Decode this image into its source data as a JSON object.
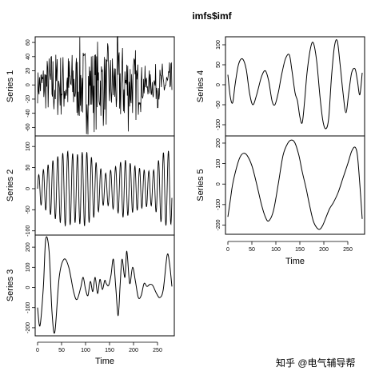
{
  "chart_data": {
    "type": "line",
    "title": "imfs$imf",
    "xlabel": "Time",
    "xticks": [
      0,
      50,
      100,
      150,
      200,
      250
    ],
    "xlim": [
      -5,
      285
    ],
    "panels": [
      {
        "name": "Series 1",
        "column": 1,
        "row": 1,
        "ylim": [
          -72,
          68
        ],
        "yticks": [
          -60,
          -40,
          -20,
          0,
          20,
          40,
          60
        ],
        "kind": "noise",
        "amplitude": 45,
        "envelope_x": [
          0,
          30,
          60,
          100,
          150,
          180,
          200,
          230,
          250,
          280
        ],
        "envelope_y": [
          20,
          50,
          45,
          55,
          45,
          60,
          45,
          15,
          25,
          25
        ]
      },
      {
        "name": "Series 2",
        "column": 1,
        "row": 2,
        "ylim": [
          -110,
          125
        ],
        "yticks": [
          -100,
          -50,
          0,
          50,
          100
        ],
        "kind": "osc",
        "period": 10,
        "envelope_x": [
          0,
          20,
          40,
          60,
          80,
          100,
          120,
          140,
          160,
          180,
          200,
          220,
          240,
          260,
          275,
          280
        ],
        "envelope_y": [
          30,
          55,
          75,
          90,
          80,
          90,
          65,
          35,
          50,
          70,
          55,
          45,
          40,
          85,
          90,
          80
        ]
      },
      {
        "name": "Series 3",
        "column": 1,
        "row": 3,
        "ylim": [
          -240,
          260
        ],
        "yticks": [
          -200,
          -100,
          0,
          100,
          200
        ],
        "kind": "points",
        "x": [
          0,
          5,
          12,
          17,
          24,
          30,
          36,
          45,
          55,
          65,
          75,
          82,
          90,
          95,
          100,
          105,
          110,
          115,
          120,
          125,
          130,
          135,
          140,
          143,
          148,
          153,
          158,
          163,
          168,
          172,
          176,
          182,
          186,
          192,
          198,
          204,
          210,
          216,
          222,
          228,
          234,
          240,
          248,
          255,
          262,
          270,
          275,
          280
        ],
        "y": [
          -100,
          -190,
          0,
          240,
          180,
          -120,
          -220,
          50,
          140,
          100,
          -20,
          -60,
          0,
          50,
          -10,
          -40,
          30,
          -20,
          50,
          -30,
          40,
          -10,
          35,
          20,
          10,
          60,
          140,
          0,
          -140,
          10,
          140,
          50,
          180,
          20,
          100,
          30,
          -50,
          -40,
          20,
          5,
          15,
          10,
          -30,
          -50,
          -10,
          160,
          120,
          5
        ]
      },
      {
        "name": "Series 4",
        "column": 2,
        "row": 1,
        "ylim": [
          -128,
          120
        ],
        "yticks": [
          -100,
          -50,
          0,
          50,
          100
        ],
        "kind": "points",
        "x": [
          0,
          5,
          10,
          15,
          22,
          30,
          38,
          45,
          52,
          60,
          70,
          78,
          85,
          92,
          98,
          105,
          112,
          120,
          128,
          133,
          140,
          145,
          150,
          155,
          160,
          165,
          172,
          178,
          185,
          192,
          198,
          204,
          210,
          216,
          222,
          228,
          234,
          240,
          246,
          252,
          258,
          265,
          270,
          275,
          280
        ],
        "y": [
          25,
          -30,
          -45,
          0,
          50,
          65,
          40,
          -20,
          -50,
          -25,
          20,
          35,
          10,
          -40,
          -50,
          -20,
          25,
          65,
          75,
          40,
          -20,
          -40,
          -80,
          -95,
          -40,
          30,
          90,
          105,
          60,
          -30,
          -90,
          -110,
          -85,
          20,
          95,
          110,
          50,
          -20,
          -70,
          -20,
          30,
          40,
          10,
          -25,
          30
        ]
      },
      {
        "name": "Series 5",
        "column": 2,
        "row": 2,
        "ylim": [
          -245,
          235
        ],
        "yticks": [
          -200,
          -100,
          0,
          100,
          200
        ],
        "kind": "points",
        "x": [
          0,
          5,
          10,
          18,
          25,
          32,
          40,
          50,
          60,
          70,
          78,
          85,
          95,
          105,
          115,
          125,
          133,
          140,
          148,
          155,
          163,
          170,
          178,
          186,
          192,
          198,
          205,
          212,
          220,
          230,
          240,
          250,
          258,
          265,
          270,
          275,
          280
        ],
        "y": [
          -160,
          -80,
          0,
          80,
          130,
          150,
          140,
          90,
          0,
          -100,
          -160,
          -180,
          -130,
          0,
          140,
          200,
          215,
          200,
          140,
          60,
          -20,
          -100,
          -180,
          -215,
          -220,
          -200,
          -160,
          -120,
          -90,
          -40,
          30,
          100,
          160,
          180,
          140,
          0,
          -170
        ]
      }
    ]
  },
  "watermark": "知乎 @电气辅导帮"
}
